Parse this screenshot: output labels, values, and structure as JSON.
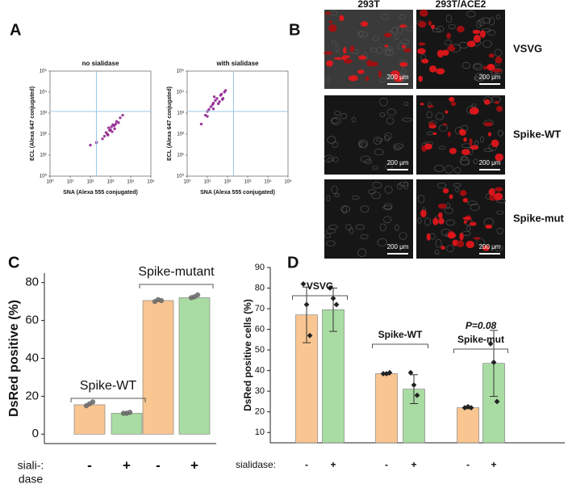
{
  "panel_labels": [
    "A",
    "B",
    "C",
    "D"
  ],
  "panel_b": {
    "columns": [
      "293T",
      "293T/ACE2"
    ],
    "rows": [
      "VSVG",
      "Spike-WT",
      "Spike-mut"
    ],
    "scale_bar": "200 μm"
  },
  "chart_data": [
    {
      "type": "scatter",
      "title": "no sialidase",
      "xlabel": "SNA (Alexa 555 conjugated)",
      "ylabel": "ECL (Alexa 647 conjugated)",
      "xscale": "log",
      "yscale": "log",
      "xlim": [
        1,
        100000
      ],
      "ylim": [
        1,
        100000
      ],
      "xticks": [
        {
          "value": 1,
          "label": "10⁰"
        },
        {
          "value": 10,
          "label": "10¹"
        },
        {
          "value": 100,
          "label": "10²"
        },
        {
          "value": 1000,
          "label": "10³"
        },
        {
          "value": 10000,
          "label": "10⁴"
        },
        {
          "value": 100000,
          "label": "10⁵"
        }
      ],
      "yticks": [
        {
          "value": 1,
          "label": "10⁰"
        },
        {
          "value": 10,
          "label": "10¹"
        },
        {
          "value": 100,
          "label": "10²"
        },
        {
          "value": 1000,
          "label": "10³"
        },
        {
          "value": 10000,
          "label": "10⁴"
        },
        {
          "value": 100000,
          "label": "10⁵"
        }
      ],
      "color": "#8b1a8b",
      "gate_color": "#8ec3e6",
      "gates": {
        "x": 200,
        "y": 1200
      },
      "x": [
        1000,
        1500,
        700,
        2000,
        800,
        1200,
        3000,
        500,
        1800,
        900,
        2500,
        600,
        400,
        1100,
        1600,
        200,
        4000,
        1300,
        750,
        100
      ],
      "y": [
        160,
        250,
        100,
        400,
        200,
        130,
        600,
        80,
        300,
        150,
        350,
        120,
        60,
        220,
        180,
        40,
        800,
        280,
        90,
        30
      ]
    },
    {
      "type": "scatter",
      "title": "with sialidase",
      "xlabel": "SNA (Alexa 555 conjugated)",
      "ylabel": "ECL (Alexa 647 conjugated)",
      "xscale": "log",
      "yscale": "log",
      "xlim": [
        1,
        100000
      ],
      "ylim": [
        1,
        100000
      ],
      "xticks": [
        {
          "value": 1,
          "label": "10⁰"
        },
        {
          "value": 10,
          "label": "10¹"
        },
        {
          "value": 100,
          "label": "10²"
        },
        {
          "value": 1000,
          "label": "10³"
        },
        {
          "value": 10000,
          "label": "10⁴"
        },
        {
          "value": 100000,
          "label": "10⁵"
        }
      ],
      "yticks": [
        {
          "value": 1,
          "label": "10⁰"
        },
        {
          "value": 10,
          "label": "10¹"
        },
        {
          "value": 100,
          "label": "10²"
        },
        {
          "value": 1000,
          "label": "10³"
        },
        {
          "value": 10000,
          "label": "10⁴"
        },
        {
          "value": 100000,
          "label": "10⁵"
        }
      ],
      "color": "#8b1a8b",
      "gate_color": "#8ec3e6",
      "gates": {
        "x": 200,
        "y": 1200
      },
      "x": [
        20,
        30,
        15,
        50,
        25,
        10,
        70,
        18,
        40,
        22,
        60,
        8,
        35,
        45,
        12,
        5,
        80,
        20,
        55,
        10
      ],
      "y": [
        3000,
        5000,
        2000,
        8000,
        4000,
        1200,
        10000,
        2500,
        3500,
        6000,
        5000,
        800,
        2800,
        7000,
        1500,
        300,
        12000,
        1600,
        4500,
        700
      ]
    },
    {
      "type": "bar",
      "ylabel": "DsRed positive (%)",
      "xlabel": [
        "siali-:",
        "dase"
      ],
      "categories": [
        "-",
        "+",
        "-",
        "+"
      ],
      "groups": [
        "Spike-WT",
        "Spike-mutant"
      ],
      "colors": [
        "#f9c590",
        "#a9dca3",
        "#f9c590",
        "#a9dca3"
      ],
      "values": [
        15.5,
        11,
        70.5,
        72
      ],
      "points": [
        [
          15,
          16,
          17
        ],
        [
          11,
          11,
          11.5
        ],
        [
          70,
          71,
          70.5
        ],
        [
          72,
          72.5,
          73.5
        ]
      ],
      "marker": "circle",
      "marker_color": "#666666",
      "ylim": [
        -5,
        85
      ],
      "yticks": [
        0,
        20,
        40,
        60,
        80
      ]
    },
    {
      "type": "bar",
      "ylabel": "DsRed positive cells (%)",
      "xlabel": "sialidase:",
      "categories": [
        "-",
        "+",
        "-",
        "+",
        "-",
        "+"
      ],
      "groups": [
        "VSVG",
        "Spike-WT",
        "Spike-mut"
      ],
      "annotation": "P=0.08",
      "colors": [
        "#f9c590",
        "#a9dca3",
        "#f9c590",
        "#a9dca3",
        "#f9c590",
        "#a9dca3"
      ],
      "values": [
        67,
        69.5,
        38.5,
        31,
        22,
        43.5
      ],
      "errors": [
        13.5,
        10.5,
        0.5,
        7,
        0.5,
        16
      ],
      "points": [
        [
          82,
          72,
          57
        ],
        [
          80,
          75,
          72
        ],
        [
          38.5,
          38.5,
          39
        ],
        [
          39,
          33,
          28
        ],
        [
          22,
          22.5,
          22
        ],
        [
          53,
          44,
          25
        ]
      ],
      "marker": "diamond",
      "marker_color": "#222222",
      "ylim": [
        5,
        90
      ],
      "yticks": [
        10,
        20,
        30,
        40,
        50,
        60,
        70,
        80,
        90
      ]
    }
  ]
}
